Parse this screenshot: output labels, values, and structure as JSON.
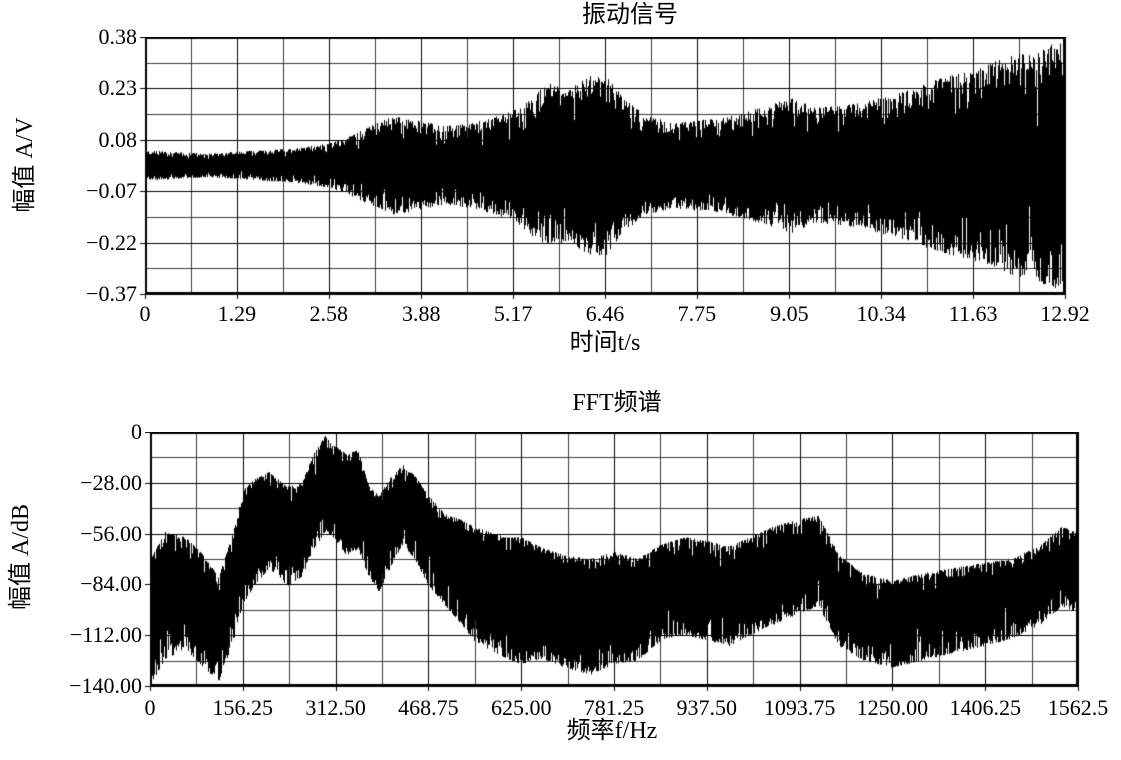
{
  "figure": {
    "background": "#ffffff",
    "ink_color": "#000000",
    "description": "Two stacked black-and-white signal plots: time-domain vibration signal and its FFT spectrum"
  },
  "chart_data": [
    {
      "type": "line",
      "title": "振动信号",
      "xlabel": "时间t/s",
      "ylabel": "幅值 A/V",
      "xlim": [
        0,
        12.92
      ],
      "ylim": [
        -0.37,
        0.38
      ],
      "x_ticks": [
        0,
        1.29,
        2.58,
        3.88,
        5.17,
        6.46,
        7.75,
        9.05,
        10.34,
        11.63,
        12.92
      ],
      "x_tick_labels": [
        "0",
        "1.29",
        "2.58",
        "3.88",
        "5.17",
        "6.46",
        "7.75",
        "9.05",
        "10.34",
        "11.63",
        "12.92"
      ],
      "y_ticks": [
        0.38,
        0.23,
        0.08,
        -0.07,
        -0.22,
        -0.37
      ],
      "y_tick_labels": [
        "0.38",
        "0.23",
        "0.08",
        "−0.07",
        "−0.22",
        "−0.37"
      ],
      "grid": {
        "major": true,
        "minor": true
      },
      "legend": null,
      "series": [
        {
          "name": "vibration-signal",
          "style": "dense-noise-band",
          "color": "#000000",
          "center": 0.005,
          "envelope_t_amp": [
            [
              0,
              0.045
            ],
            [
              0.4,
              0.04
            ],
            [
              0.9,
              0.035
            ],
            [
              1.29,
              0.04
            ],
            [
              1.7,
              0.046
            ],
            [
              2.1,
              0.05
            ],
            [
              2.58,
              0.065
            ],
            [
              2.9,
              0.09
            ],
            [
              3.2,
              0.12
            ],
            [
              3.5,
              0.145
            ],
            [
              3.88,
              0.13
            ],
            [
              4.2,
              0.115
            ],
            [
              4.6,
              0.125
            ],
            [
              5.0,
              0.15
            ],
            [
              5.17,
              0.16
            ],
            [
              5.45,
              0.21
            ],
            [
              5.7,
              0.24
            ],
            [
              5.95,
              0.22
            ],
            [
              6.2,
              0.26
            ],
            [
              6.46,
              0.27
            ],
            [
              6.7,
              0.2
            ],
            [
              7.0,
              0.15
            ],
            [
              7.4,
              0.125
            ],
            [
              7.75,
              0.135
            ],
            [
              8.1,
              0.14
            ],
            [
              8.5,
              0.16
            ],
            [
              8.8,
              0.18
            ],
            [
              9.05,
              0.2
            ],
            [
              9.4,
              0.17
            ],
            [
              9.8,
              0.175
            ],
            [
              10.34,
              0.2
            ],
            [
              10.7,
              0.22
            ],
            [
              11.1,
              0.25
            ],
            [
              11.63,
              0.28
            ],
            [
              12.0,
              0.31
            ],
            [
              12.4,
              0.335
            ],
            [
              12.92,
              0.37
            ]
          ]
        }
      ]
    },
    {
      "type": "line",
      "title": "FFT频谱",
      "xlabel": "频率f/Hz",
      "ylabel": "幅值 A/dB",
      "xlim": [
        0,
        1562.5
      ],
      "ylim": [
        -140,
        0
      ],
      "x_ticks": [
        0,
        156.25,
        312.5,
        468.75,
        625,
        781.25,
        937.5,
        1093.75,
        1250,
        1406.25,
        1562.5
      ],
      "x_tick_labels": [
        "0",
        "156.25",
        "312.50",
        "468.75",
        "625.00",
        "781.25",
        "937.50",
        "1093.75",
        "1250.00",
        "1406.25",
        "1562.5"
      ],
      "y_ticks": [
        0,
        -28,
        -56,
        -84,
        -112,
        -140
      ],
      "y_tick_labels": [
        "0",
        "−28.00",
        "−56.00",
        "−84.00",
        "−112.00",
        "−140.00"
      ],
      "grid": {
        "major": true,
        "minor": true
      },
      "legend": null,
      "series": [
        {
          "name": "fft-spectrum",
          "style": "dense-noise-band",
          "color": "#000000",
          "envelope_f_top_bottom": [
            [
              0,
              -70,
              -140
            ],
            [
              25,
              -55,
              -125
            ],
            [
              60,
              -58,
              -120
            ],
            [
              90,
              -68,
              -130
            ],
            [
              115,
              -80,
              -138
            ],
            [
              140,
              -55,
              -115
            ],
            [
              156.25,
              -32,
              -95
            ],
            [
              175,
              -26,
              -85
            ],
            [
              200,
              -22,
              -75
            ],
            [
              230,
              -30,
              -85
            ],
            [
              255,
              -28,
              -80
            ],
            [
              275,
              -12,
              -65
            ],
            [
              295,
              -2,
              -55
            ],
            [
              312.5,
              -8,
              -60
            ],
            [
              330,
              -12,
              -68
            ],
            [
              350,
              -10,
              -65
            ],
            [
              368,
              -30,
              -80
            ],
            [
              385,
              -35,
              -88
            ],
            [
              405,
              -25,
              -75
            ],
            [
              425,
              -18,
              -62
            ],
            [
              445,
              -24,
              -70
            ],
            [
              468.75,
              -35,
              -85
            ],
            [
              495,
              -45,
              -95
            ],
            [
              520,
              -48,
              -105
            ],
            [
              545,
              -52,
              -115
            ],
            [
              570,
              -55,
              -120
            ],
            [
              600,
              -58,
              -125
            ],
            [
              625,
              -58,
              -128
            ],
            [
              660,
              -64,
              -125
            ],
            [
              700,
              -68,
              -130
            ],
            [
              740,
              -70,
              -134
            ],
            [
              781.25,
              -66,
              -128
            ],
            [
              820,
              -70,
              -126
            ],
            [
              860,
              -62,
              -115
            ],
            [
              900,
              -58,
              -112
            ],
            [
              937.5,
              -60,
              -115
            ],
            [
              975,
              -63,
              -118
            ],
            [
              1010,
              -58,
              -112
            ],
            [
              1050,
              -52,
              -106
            ],
            [
              1093.75,
              -48,
              -100
            ],
            [
              1125,
              -46,
              -96
            ],
            [
              1160,
              -68,
              -118
            ],
            [
              1200,
              -78,
              -126
            ],
            [
              1250,
              -82,
              -130
            ],
            [
              1300,
              -78,
              -126
            ],
            [
              1350,
              -75,
              -122
            ],
            [
              1406.25,
              -72,
              -118
            ],
            [
              1450,
              -70,
              -114
            ],
            [
              1500,
              -62,
              -106
            ],
            [
              1535,
              -52,
              -96
            ],
            [
              1562.5,
              -56,
              -100
            ]
          ]
        }
      ]
    }
  ]
}
